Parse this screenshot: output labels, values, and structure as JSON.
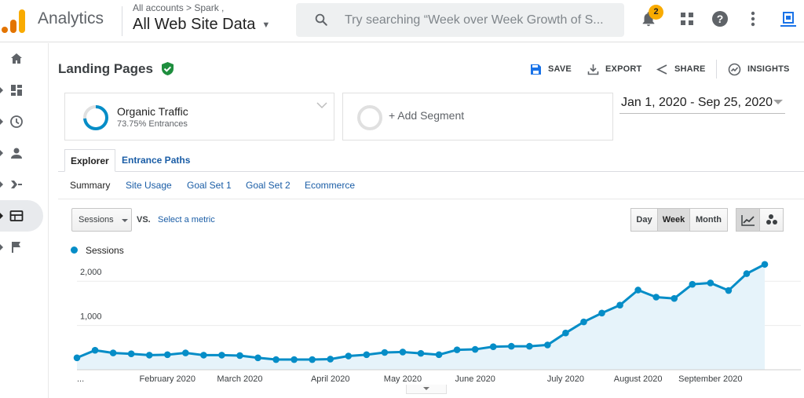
{
  "header": {
    "app_title": "Analytics",
    "account_breadcrumb": "All accounts > Spark ,",
    "view_name": "All Web Site Data",
    "search": {
      "placeholder": "Try searching “Week over Week Growth of S..."
    },
    "notification_count": "2",
    "icons": [
      "notifications-icon",
      "apps-icon",
      "help-icon",
      "more-vert-icon",
      "account-icon"
    ]
  },
  "nav": {
    "items": [
      {
        "name": "home",
        "icon": "home-icon"
      },
      {
        "name": "customization",
        "icon": "dashboard-icon"
      },
      {
        "name": "realtime",
        "icon": "clock-icon"
      },
      {
        "name": "audience",
        "icon": "person-icon"
      },
      {
        "name": "acquisition",
        "icon": "acquisition-icon"
      },
      {
        "name": "behavior",
        "icon": "behavior-icon",
        "active": true
      },
      {
        "name": "conversions",
        "icon": "flag-icon"
      }
    ]
  },
  "report": {
    "title": "Landing Pages",
    "actions": {
      "save": "SAVE",
      "export": "EXPORT",
      "share": "SHARE",
      "insights": "INSIGHTS"
    }
  },
  "segments": {
    "active": {
      "name": "Organic Traffic",
      "detail": "73.75% Entrances"
    },
    "add_label": "+ Add Segment"
  },
  "date_range": "Jan 1, 2020 - Sep 25, 2020",
  "tabs": [
    "Explorer",
    "Entrance Paths"
  ],
  "subtabs": [
    "Summary",
    "Site Usage",
    "Goal Set 1",
    "Goal Set 2",
    "Ecommerce"
  ],
  "chart_controls": {
    "metric": "Sessions",
    "vs": "VS.",
    "select_metric": "Select a metric",
    "granularity": [
      "Day",
      "Week",
      "Month"
    ],
    "granularity_selected": "Week"
  },
  "chart_data": {
    "type": "line",
    "series": [
      {
        "name": "Sessions",
        "color": "#058dc7",
        "values": [
          270,
          440,
          380,
          360,
          330,
          340,
          380,
          330,
          330,
          320,
          270,
          230,
          230,
          230,
          240,
          310,
          340,
          390,
          400,
          370,
          340,
          450,
          460,
          520,
          530,
          530,
          560,
          830,
          1080,
          1280,
          1460,
          1800,
          1640,
          1610,
          1930,
          1960,
          1790,
          2170,
          2380
        ]
      }
    ],
    "x_tick_labels": [
      "...",
      "February 2020",
      "March 2020",
      "April 2020",
      "May 2020",
      "June 2020",
      "July 2020",
      "August 2020",
      "September 2020"
    ],
    "x_tick_week_index": [
      0,
      5,
      9,
      14,
      18,
      22,
      27,
      31,
      35
    ],
    "y_tick_labels": [
      "1,000",
      "2,000"
    ],
    "y_ticks": [
      1000,
      2000
    ],
    "ylim": [
      0,
      2500
    ],
    "grid": true,
    "legend": "top-left",
    "fill": "area"
  }
}
